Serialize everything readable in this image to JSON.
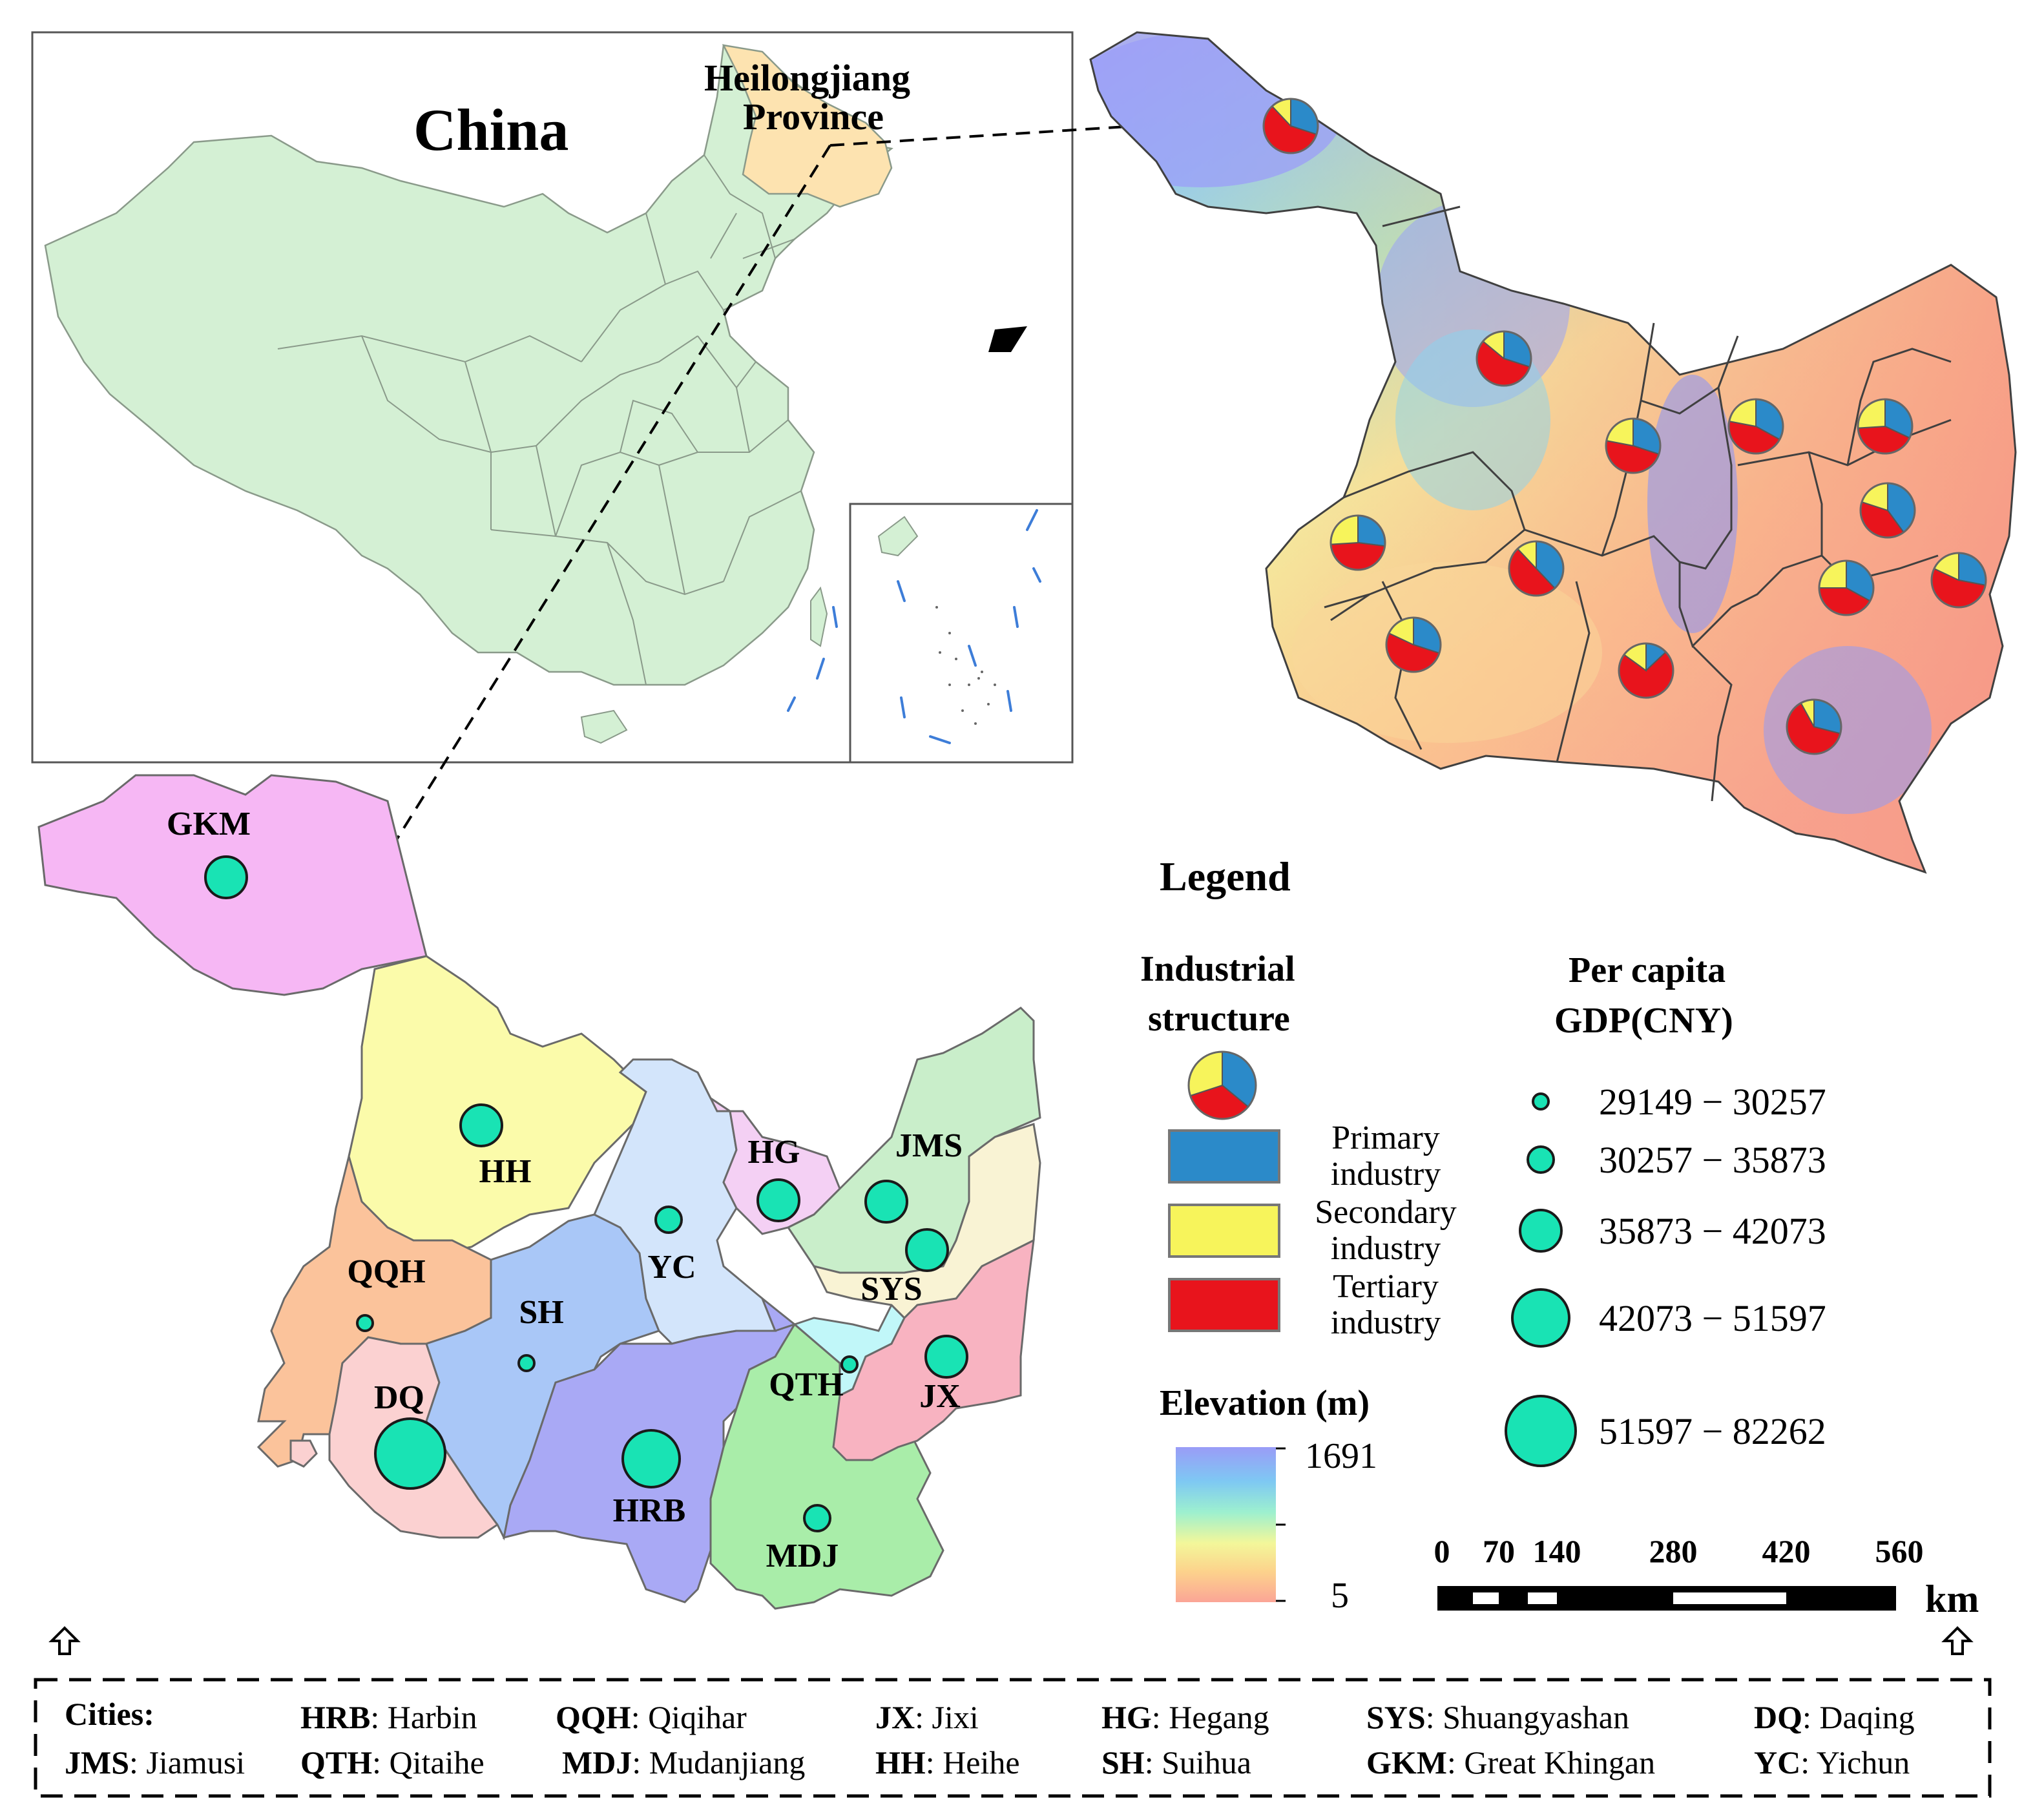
{
  "china_inset": {
    "title": "China",
    "highlight_label": [
      "Heilongjiang",
      "Province"
    ],
    "colors": {
      "land": "#d4f0d4",
      "highlight": "#fde3b0",
      "border": "#8a9a8a",
      "sea_marks": "#3d7dd8"
    }
  },
  "cities": [
    {
      "code": "GKM",
      "gdp_class": 2
    },
    {
      "code": "HH",
      "gdp_class": 2
    },
    {
      "code": "YC",
      "gdp_class": 1
    },
    {
      "code": "HG",
      "gdp_class": 2
    },
    {
      "code": "JMS",
      "gdp_class": 2
    },
    {
      "code": "SYS",
      "gdp_class": 2
    },
    {
      "code": "QQH",
      "gdp_class": 0
    },
    {
      "code": "SH",
      "gdp_class": 0
    },
    {
      "code": "QTH",
      "gdp_class": 0
    },
    {
      "code": "JX",
      "gdp_class": 2
    },
    {
      "code": "DQ",
      "gdp_class": 4
    },
    {
      "code": "HRB",
      "gdp_class": 3
    },
    {
      "code": "MDJ",
      "gdp_class": 1
    }
  ],
  "industry_pies": [
    {
      "primary": 0.3,
      "secondary": 0.12,
      "tertiary": 0.58
    },
    {
      "primary": 0.3,
      "secondary": 0.14,
      "tertiary": 0.56
    },
    {
      "primary": 0.3,
      "secondary": 0.22,
      "tertiary": 0.48
    },
    {
      "primary": 0.33,
      "secondary": 0.22,
      "tertiary": 0.45
    },
    {
      "primary": 0.32,
      "secondary": 0.26,
      "tertiary": 0.42
    },
    {
      "primary": 0.4,
      "secondary": 0.2,
      "tertiary": 0.4
    },
    {
      "primary": 0.27,
      "secondary": 0.26,
      "tertiary": 0.47
    },
    {
      "primary": 0.38,
      "secondary": 0.12,
      "tertiary": 0.5
    },
    {
      "primary": 0.33,
      "secondary": 0.25,
      "tertiary": 0.42
    },
    {
      "primary": 0.28,
      "secondary": 0.18,
      "tertiary": 0.54
    },
    {
      "primary": 0.3,
      "secondary": 0.18,
      "tertiary": 0.52
    },
    {
      "primary": 0.13,
      "secondary": 0.15,
      "tertiary": 0.72
    },
    {
      "primary": 0.29,
      "secondary": 0.08,
      "tertiary": 0.63
    }
  ],
  "legend": {
    "title": "Legend",
    "industrial_title": [
      "Industrial",
      "structure"
    ],
    "industries": [
      {
        "label": [
          "Primary",
          "industry"
        ],
        "color": "#2b8ac9"
      },
      {
        "label": [
          "Secondary",
          "industry"
        ],
        "color": "#f7f45b"
      },
      {
        "label": [
          "Tertiary",
          "industry"
        ],
        "color": "#e8141c"
      }
    ],
    "gdp_title": [
      "Per capita",
      "GDP(CNY)"
    ],
    "gdp_classes": [
      "29149 − 30257",
      "30257 − 35873",
      "35873 − 42073",
      "42073 − 51597",
      "51597 − 82262"
    ],
    "gdp_color": "#19e3b4",
    "elevation_title": "Elevation (m)",
    "elevation_max": "1691",
    "elevation_min": "5",
    "elevation_colors": [
      "#9a9cf7",
      "#7ec8f3",
      "#9df0cf",
      "#f3f79a",
      "#fcd38c",
      "#fba596"
    ]
  },
  "scale_bar": {
    "ticks": [
      "0",
      "70",
      "140",
      "280",
      "420",
      "560"
    ],
    "unit": "km"
  },
  "city_key": {
    "heading": "Cities:",
    "entries": [
      {
        "code": "HRB",
        "name": ": Harbin"
      },
      {
        "code": "QQH",
        "name": ": Qiqihar"
      },
      {
        "code": "JX",
        "name": ": Jixi"
      },
      {
        "code": "HG",
        "name": ": Hegang"
      },
      {
        "code": "SYS",
        "name": ": Shuangyashan"
      },
      {
        "code": "DQ",
        "name": ": Daqing"
      },
      {
        "code": "JMS",
        "name": ": Jiamusi"
      },
      {
        "code": "QTH",
        "name": ": Qitaihe"
      },
      {
        "code": "MDJ",
        "name": ": Mudanjiang"
      },
      {
        "code": "HH",
        "name": ": Heihe"
      },
      {
        "code": "SH",
        "name": ": Suihua"
      },
      {
        "code": "GKM",
        "name": ": Great Khingan"
      },
      {
        "code": "YC",
        "name": ": Yichun"
      }
    ]
  }
}
